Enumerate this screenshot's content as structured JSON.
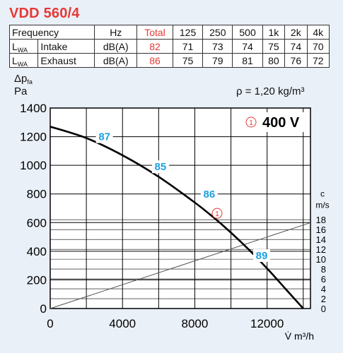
{
  "title": "VDD 560/4",
  "sound_table": {
    "header": [
      "Frequency",
      "Hz",
      "Total",
      "125",
      "250",
      "500",
      "1k",
      "2k",
      "4k"
    ],
    "rows": [
      {
        "label": "L",
        "sub": "WA",
        "name": "Intake",
        "unit": "dB(A)",
        "total": "82",
        "values": [
          "71",
          "73",
          "74",
          "75",
          "74",
          "70"
        ]
      },
      {
        "label": "L",
        "sub": "WA",
        "name": "Exhaust",
        "unit": "dB(A)",
        "total": "86",
        "values": [
          "75",
          "79",
          "81",
          "80",
          "76",
          "72"
        ]
      }
    ]
  },
  "y_unit_symbol": "Δp",
  "y_unit_sub": "fa",
  "y_unit": "Pa",
  "density": "ρ = 1,20 kg/m³",
  "colors": {
    "title": "#e53935",
    "label": "#1da1e0",
    "curve": "#000000"
  },
  "chart_data": {
    "type": "line",
    "xlabel": "V̇ m³/h",
    "ylabel": "Δpfa Pa",
    "xlim": [
      0,
      14400
    ],
    "ylim": [
      0,
      1400
    ],
    "x_ticks": [
      0,
      4000,
      8000,
      12000
    ],
    "x_gridlines": [
      2000,
      4000,
      6000,
      8000,
      10000,
      12000,
      14000
    ],
    "y_ticks": [
      0,
      200,
      400,
      600,
      800,
      1000,
      1200,
      1400
    ],
    "grid": true,
    "secondary_axis": {
      "label": "c m/s",
      "unit_top": "c",
      "unit_bottom": "m/s",
      "ticks": [
        0,
        2,
        4,
        6,
        8,
        10,
        12,
        14,
        16,
        18
      ],
      "range": [
        0,
        18
      ]
    },
    "series": [
      {
        "name": "400 V",
        "marker": "1",
        "x": [
          0,
          2000,
          4000,
          6000,
          8000,
          9000,
          10000,
          11000,
          12000,
          13000,
          14000
        ],
        "y": [
          1270,
          1190,
          1070,
          920,
          740,
          640,
          530,
          410,
          280,
          140,
          0
        ]
      },
      {
        "name": "velocity",
        "x": [
          0,
          14400
        ],
        "y": [
          0,
          17.4
        ]
      }
    ],
    "annotations": [
      {
        "text": "87",
        "x": 3000,
        "y": 1175
      },
      {
        "text": "85",
        "x": 6100,
        "y": 965
      },
      {
        "text": "86",
        "x": 8800,
        "y": 775
      },
      {
        "text": "89",
        "x": 11700,
        "y": 345
      }
    ],
    "curve_marker": {
      "text": "1",
      "x": 9000,
      "y": 645
    },
    "legend": {
      "marker": "1",
      "text": "400 V",
      "position": "top-right"
    }
  }
}
